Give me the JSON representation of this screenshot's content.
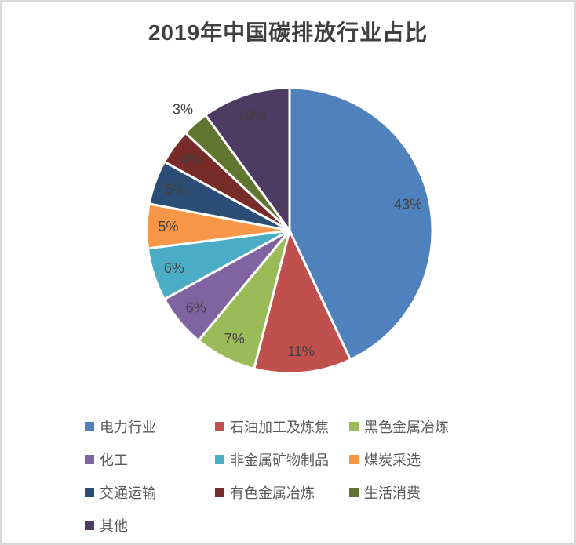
{
  "page": {
    "background": "#ffffff",
    "border_color": "#d9d9d9"
  },
  "chart_data": {
    "type": "pie",
    "title": "2019年中国碳排放行业占比",
    "title_color": "#404040",
    "label_color": "#404040",
    "legend_text_color": "#595959",
    "legend_position": "bottom",
    "start_angle_deg": 0,
    "direction": "clockwise",
    "slice_separator_color": "#ffffff",
    "slices": [
      {
        "label": "电力行业",
        "value": 43,
        "pct_label": "43%",
        "color": "#4F81BD"
      },
      {
        "label": "石油加工及炼焦",
        "value": 11,
        "pct_label": "11%",
        "color": "#C0504D"
      },
      {
        "label": "黑色金属冶炼",
        "value": 7,
        "pct_label": "7%",
        "color": "#9BBB59"
      },
      {
        "label": "化工",
        "value": 6,
        "pct_label": "6%",
        "color": "#8064A2"
      },
      {
        "label": "非金属矿物制品",
        "value": 6,
        "pct_label": "6%",
        "color": "#4BACC6"
      },
      {
        "label": "煤炭采选",
        "value": 5,
        "pct_label": "5%",
        "color": "#F79646"
      },
      {
        "label": "交通运输",
        "value": 5,
        "pct_label": "5%",
        "color": "#2C4D75"
      },
      {
        "label": "有色金属冶炼",
        "value": 4,
        "pct_label": "4%",
        "color": "#772C2A"
      },
      {
        "label": "生活消费",
        "value": 3,
        "pct_label": "3%",
        "color": "#5F7530",
        "label_outside": true
      },
      {
        "label": "其他",
        "value": 10,
        "pct_label": "10%",
        "color": "#4D3B62"
      }
    ]
  }
}
